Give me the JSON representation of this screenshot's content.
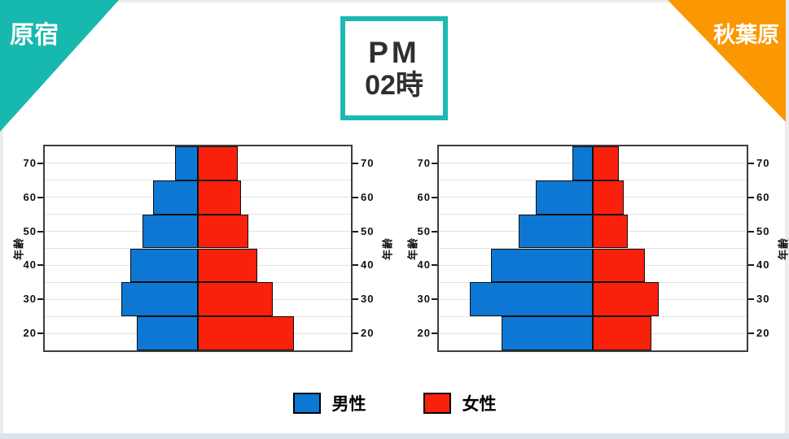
{
  "banners": {
    "left": {
      "label": "原宿",
      "color": "#17b8ae"
    },
    "right": {
      "label": "秋葉原",
      "color": "#fb9700"
    }
  },
  "time_box": {
    "line1": "PM",
    "line2": "02時",
    "border_color": "#1cb8b2"
  },
  "legend": {
    "male_label": "男性",
    "female_label": "女性",
    "male_color": "#0c78d3",
    "female_color": "#f9200c"
  },
  "chart_data": [
    {
      "type": "bar",
      "subtype": "population-pyramid",
      "location": "原宿",
      "ylabel": "年齢",
      "age_ticks": [
        70,
        60,
        50,
        40,
        30,
        20
      ],
      "age_bands_top_to_bottom": [
        "65-75",
        "55-65",
        "45-55",
        "35-45",
        "25-35",
        "15-25"
      ],
      "axis_range_years": [
        15,
        75
      ],
      "grid_step_years": 5,
      "value_unit": "percent of half-axis width (no numeric x labels shown)",
      "xlim_percent": [
        0,
        100
      ],
      "series": [
        {
          "name": "男性",
          "side": "left",
          "color": "#0c78d3",
          "values": [
            15,
            29,
            36,
            44,
            50,
            40
          ]
        },
        {
          "name": "女性",
          "side": "right",
          "color": "#f9200c",
          "values": [
            26,
            28,
            33,
            39,
            49,
            63
          ]
        }
      ]
    },
    {
      "type": "bar",
      "subtype": "population-pyramid",
      "location": "秋葉原",
      "ylabel": "年齢",
      "age_ticks": [
        70,
        60,
        50,
        40,
        30,
        20
      ],
      "age_bands_top_to_bottom": [
        "65-75",
        "55-65",
        "45-55",
        "35-45",
        "25-35",
        "15-25"
      ],
      "axis_range_years": [
        15,
        75
      ],
      "grid_step_years": 5,
      "value_unit": "percent of half-axis width (no numeric x labels shown)",
      "xlim_percent": [
        0,
        100
      ],
      "series": [
        {
          "name": "男性",
          "side": "left",
          "color": "#0c78d3",
          "values": [
            13,
            37,
            48,
            66,
            80,
            59
          ]
        },
        {
          "name": "女性",
          "side": "right",
          "color": "#f9200c",
          "values": [
            17,
            20,
            23,
            34,
            43,
            38
          ]
        }
      ]
    }
  ]
}
